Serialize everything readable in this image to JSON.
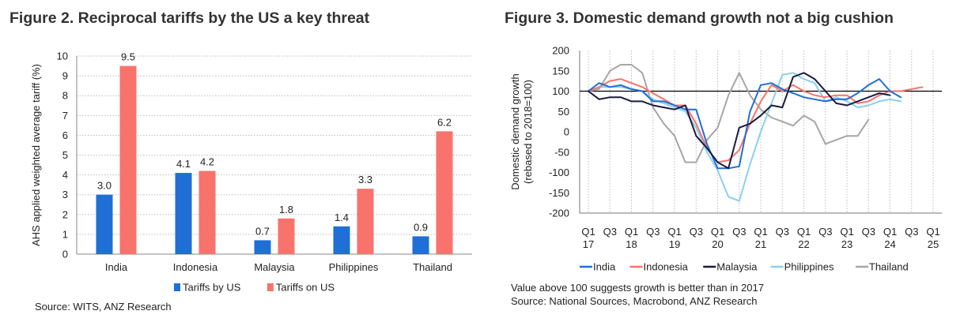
{
  "figure2": {
    "title": "Figure 2. Reciprocal tariffs by the US a key threat",
    "source": "Source: WITS, ANZ Research"
  },
  "figure3": {
    "title": "Figure 3. Domestic demand growth not a big cushion",
    "note": "Value above 100 suggests growth is better than in 2017",
    "source": "Source: National Sources, Macrobond, ANZ Research"
  },
  "chart_data": [
    {
      "type": "bar",
      "title": "Figure 2. Reciprocal tariffs by the US a key threat",
      "ylabel": "AHS applied weighted average tariff (%)",
      "ylim": [
        0,
        10
      ],
      "yticks": [
        "0",
        "1",
        "2",
        "3",
        "4",
        "5",
        "6",
        "7",
        "8",
        "9",
        "10"
      ],
      "categories": [
        "India",
        "Indonesia",
        "Malaysia",
        "Philippines",
        "Thailand"
      ],
      "series": [
        {
          "name": "Tariffs by US",
          "color": "#1f6fd6",
          "values": [
            3.0,
            4.1,
            0.7,
            1.4,
            0.9
          ],
          "labels": [
            "3.0",
            "4.1",
            "0.7",
            "1.4",
            "0.9"
          ]
        },
        {
          "name": "Tariffs on US",
          "color": "#f7736c",
          "values": [
            9.5,
            4.2,
            1.8,
            3.3,
            6.2
          ],
          "labels": [
            "9.5",
            "4.2",
            "1.8",
            "3.3",
            "6.2"
          ]
        }
      ],
      "grid": "horizontal dotted",
      "legend": "bottom"
    },
    {
      "type": "line",
      "title": "Figure 3. Domestic demand growth not a big cushion",
      "ylabel": [
        "Domestic demand growth",
        "(rebased to 2018=100)"
      ],
      "ylim": [
        -200,
        200
      ],
      "yticks": [
        "200",
        "150",
        "100",
        "50",
        "0",
        "-50",
        "-100",
        "-150",
        "-200"
      ],
      "xlim": [
        "2017 Q1",
        "2025 Q1"
      ],
      "xticks": [
        {
          "q": "Q1",
          "y": "17"
        },
        {
          "q": "Q3",
          "y": ""
        },
        {
          "q": "Q1",
          "y": "18"
        },
        {
          "q": "Q3",
          "y": ""
        },
        {
          "q": "Q1",
          "y": "19"
        },
        {
          "q": "Q3",
          "y": ""
        },
        {
          "q": "Q1",
          "y": "20"
        },
        {
          "q": "Q3",
          "y": ""
        },
        {
          "q": "Q1",
          "y": "21"
        },
        {
          "q": "Q3",
          "y": ""
        },
        {
          "q": "Q1",
          "y": "22"
        },
        {
          "q": "Q3",
          "y": ""
        },
        {
          "q": "Q1",
          "y": "23"
        },
        {
          "q": "Q3",
          "y": ""
        },
        {
          "q": "Q1",
          "y": "24"
        },
        {
          "q": "Q3",
          "y": ""
        },
        {
          "q": "Q1",
          "y": "25"
        }
      ],
      "xtick_rows": [
        "Q1 Q3 Q1 Q3 Q1 Q3 Q1 Q3 Q1 Q3 Q1 Q3 Q1 Q3 Q1 Q3 Q1",
        "17 18 19 20 21 22 23 24 25"
      ],
      "reference_line": 100,
      "x": [
        "2017 Q1",
        "2017 Q2",
        "2017 Q3",
        "2017 Q4",
        "2018 Q1",
        "2018 Q2",
        "2018 Q3",
        "2018 Q4",
        "2019 Q1",
        "2019 Q2",
        "2019 Q3",
        "2019 Q4",
        "2020 Q1",
        "2020 Q2",
        "2020 Q3",
        "2020 Q4",
        "2021 Q1",
        "2021 Q2",
        "2021 Q3",
        "2021 Q4",
        "2022 Q1",
        "2022 Q2",
        "2022 Q3",
        "2022 Q4",
        "2023 Q1",
        "2023 Q2",
        "2023 Q3",
        "2023 Q4",
        "2024 Q1",
        "2024 Q2",
        "2024 Q3",
        "2024 Q4"
      ],
      "series": [
        {
          "name": "India",
          "color": "#1f6fd6",
          "values": [
            100,
            120,
            110,
            115,
            105,
            100,
            75,
            75,
            65,
            55,
            55,
            -30,
            -90,
            -90,
            -85,
            50,
            115,
            120,
            105,
            95,
            85,
            80,
            75,
            80,
            80,
            95,
            115,
            130,
            100,
            85,
            null,
            null
          ]
        },
        {
          "name": "Indonesia",
          "color": "#f7736c",
          "values": [
            100,
            110,
            125,
            130,
            120,
            110,
            95,
            80,
            65,
            65,
            20,
            -40,
            -75,
            -70,
            -45,
            20,
            75,
            115,
            100,
            115,
            100,
            90,
            85,
            90,
            90,
            70,
            75,
            90,
            100,
            100,
            105,
            110
          ]
        },
        {
          "name": "Malaysia",
          "color": "#1a1a3e",
          "values": [
            100,
            80,
            85,
            85,
            75,
            75,
            65,
            60,
            55,
            65,
            -10,
            -40,
            -75,
            -90,
            10,
            20,
            40,
            65,
            60,
            135,
            145,
            130,
            100,
            70,
            65,
            75,
            85,
            95,
            90,
            null,
            null,
            null
          ]
        },
        {
          "name": "Philippines",
          "color": "#87d1ef",
          "values": [
            100,
            110,
            110,
            110,
            105,
            100,
            80,
            70,
            60,
            50,
            10,
            -50,
            -95,
            -160,
            -170,
            -80,
            0,
            70,
            140,
            145,
            130,
            120,
            75,
            85,
            75,
            60,
            65,
            75,
            80,
            75,
            null,
            null
          ]
        },
        {
          "name": "Thailand",
          "color": "#a6a6a6",
          "values": [
            100,
            105,
            150,
            165,
            165,
            145,
            60,
            20,
            -10,
            -75,
            -75,
            -20,
            10,
            90,
            145,
            90,
            55,
            35,
            25,
            15,
            40,
            25,
            -30,
            -20,
            -10,
            -10,
            30,
            null,
            null,
            null,
            null,
            null
          ]
        }
      ],
      "grid": "vertical dotted",
      "legend": "bottom"
    }
  ]
}
